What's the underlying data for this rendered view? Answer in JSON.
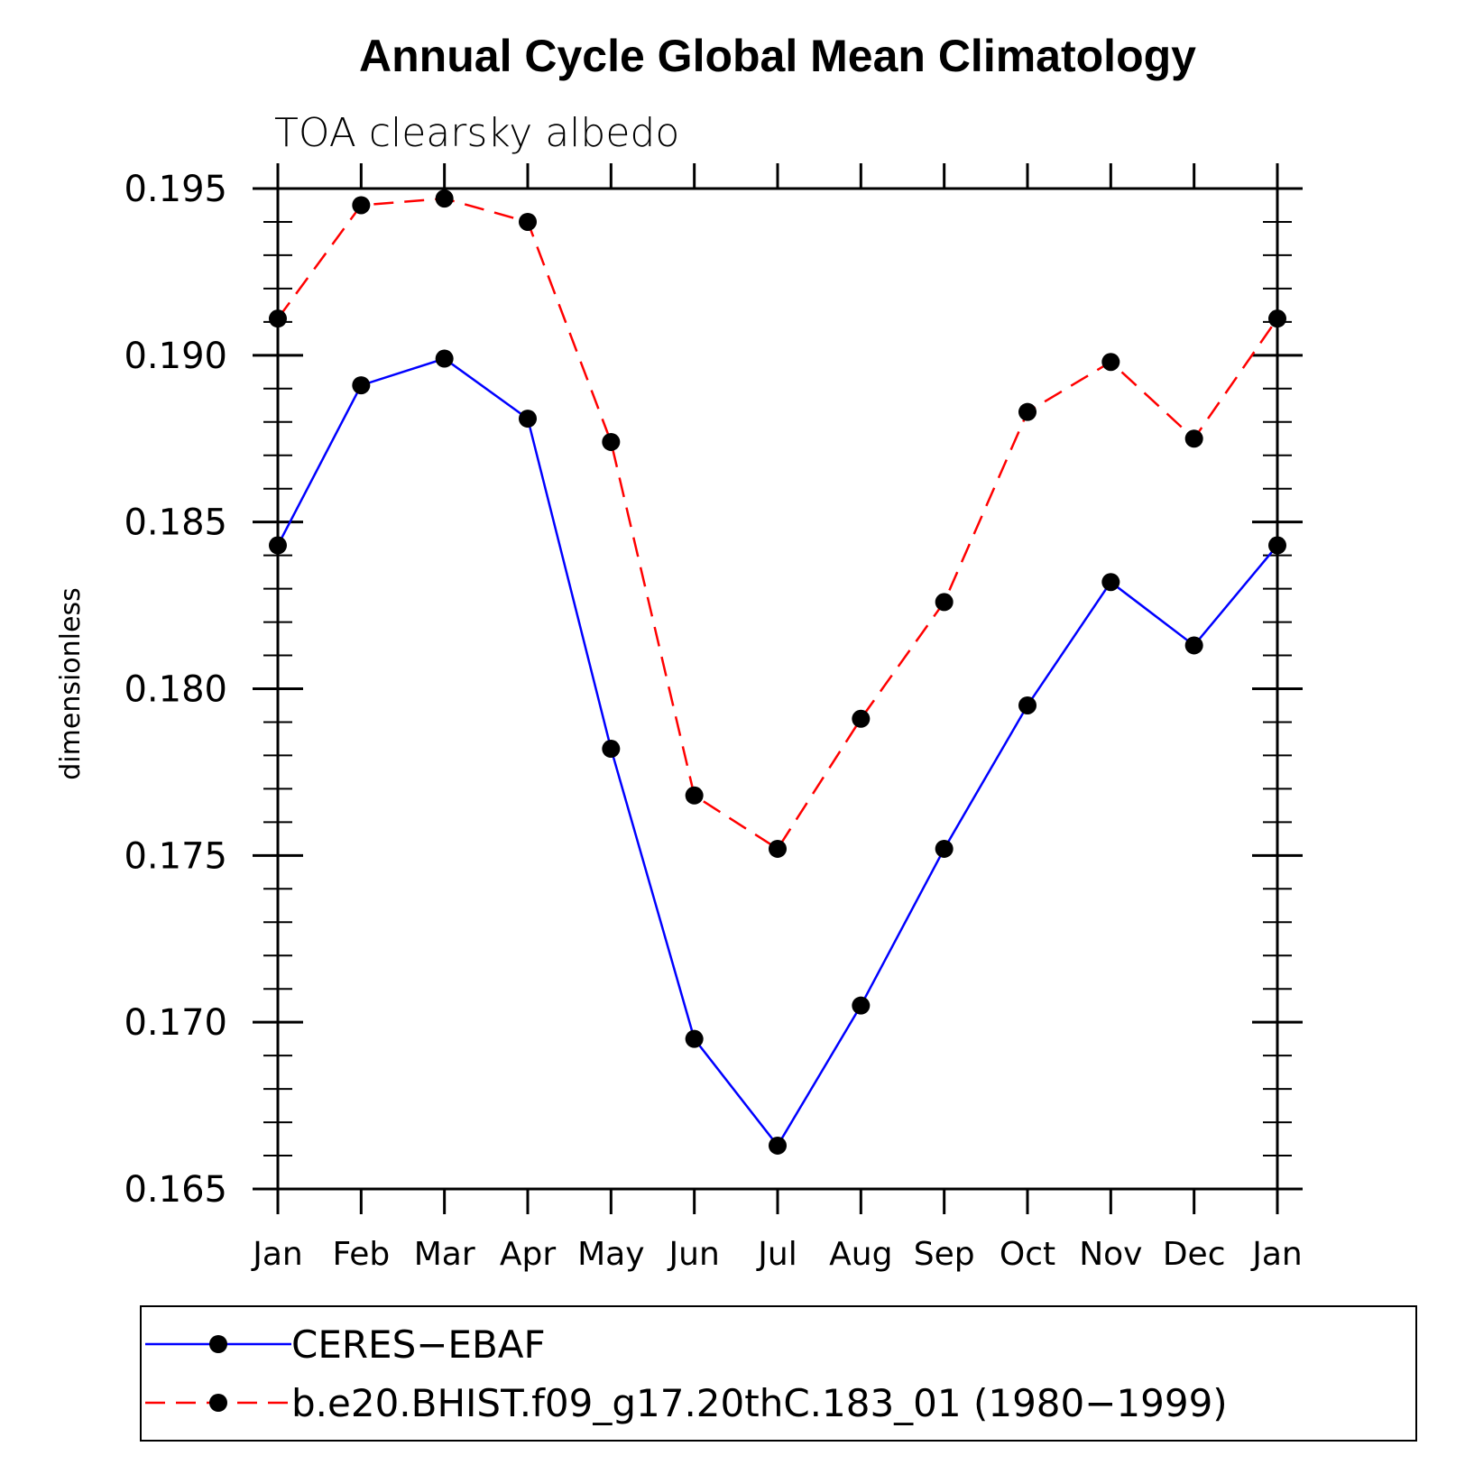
{
  "chart_data": {
    "type": "line",
    "title": "Annual Cycle Global Mean Climatology",
    "subtitle": "TOA clearsky albedo",
    "xlabel": "",
    "ylabel": "dimensionless",
    "categories": [
      "Jan",
      "Feb",
      "Mar",
      "Apr",
      "May",
      "Jun",
      "Jul",
      "Aug",
      "Sep",
      "Oct",
      "Nov",
      "Dec",
      "Jan"
    ],
    "ylim": [
      0.165,
      0.195
    ],
    "yticks": [
      0.165,
      0.17,
      0.175,
      0.18,
      0.185,
      0.19,
      0.195
    ],
    "ytick_labels": [
      "0.165",
      "0.170",
      "0.175",
      "0.180",
      "0.185",
      "0.190",
      "0.195"
    ],
    "grid": false,
    "legend_position": "bottom",
    "series": [
      {
        "name": "CERES−EBAF",
        "color": "#0000ff",
        "line_style": "solid",
        "marker": "filled-circle",
        "values": [
          0.1843,
          0.1891,
          0.1899,
          0.1881,
          0.1782,
          0.1695,
          0.1663,
          0.1705,
          0.1752,
          0.1795,
          0.1832,
          0.1813,
          0.1843
        ]
      },
      {
        "name": "b.e20.BHIST.f09_g17.20thC.183_01 (1980−1999)",
        "color": "#ff0000",
        "line_style": "dashed",
        "marker": "filled-circle",
        "values": [
          0.1911,
          0.1945,
          0.1947,
          0.194,
          0.1874,
          0.1768,
          0.1752,
          0.1791,
          0.1826,
          0.1883,
          0.1898,
          0.1875,
          0.1911
        ]
      }
    ]
  }
}
